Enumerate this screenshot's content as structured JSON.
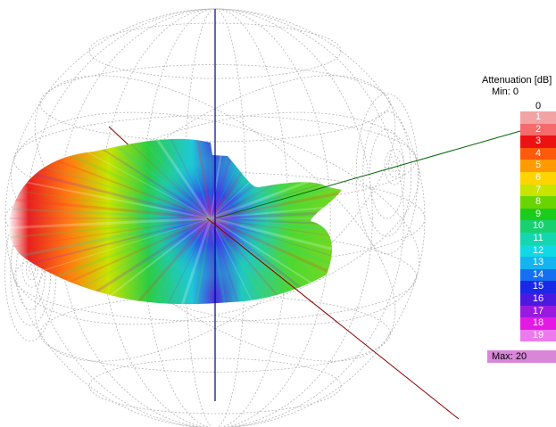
{
  "legend": {
    "title": "Attenuation [dB]",
    "min_label": "Min: 0",
    "zero_label": "0",
    "max_label": "Max: 20",
    "steps": [
      {
        "label": "1",
        "color": "#f2a3a3"
      },
      {
        "label": "2",
        "color": "#f56a6a"
      },
      {
        "label": "3",
        "color": "#ee1111"
      },
      {
        "label": "4",
        "color": "#ff5a0a"
      },
      {
        "label": "5",
        "color": "#ff9a00"
      },
      {
        "label": "6",
        "color": "#ffd400"
      },
      {
        "label": "7",
        "color": "#c8e400"
      },
      {
        "label": "8",
        "color": "#6ad400"
      },
      {
        "label": "9",
        "color": "#1ccc1c"
      },
      {
        "label": "10",
        "color": "#18d070"
      },
      {
        "label": "11",
        "color": "#14d6b0"
      },
      {
        "label": "12",
        "color": "#10d8e4"
      },
      {
        "label": "13",
        "color": "#14b4f0"
      },
      {
        "label": "14",
        "color": "#1470f0"
      },
      {
        "label": "15",
        "color": "#1a28e8"
      },
      {
        "label": "16",
        "color": "#4a1ae0"
      },
      {
        "label": "17",
        "color": "#9a1ae0"
      },
      {
        "label": "18",
        "color": "#e41ae4"
      },
      {
        "label": "19",
        "color": "#ec7aec"
      }
    ]
  },
  "scene": {
    "axis_colors": {
      "x": "#006400",
      "y": "#00008b",
      "z": "#8b0000"
    },
    "wireframe_color": "#b4b4b4"
  }
}
